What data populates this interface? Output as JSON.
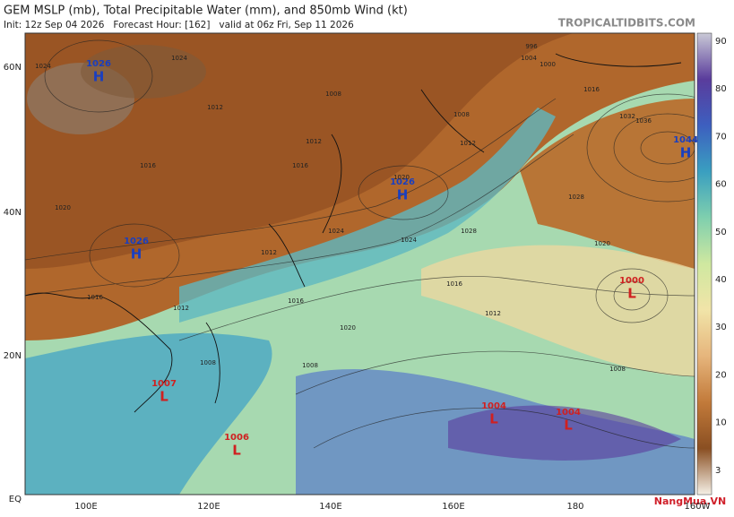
{
  "header": {
    "title": "GEM MSLP (mb), Total Precipitable Water (mm), and 850mb Wind (kt)",
    "subtitle": "Init: 12z Sep 04 2026   Forecast Hour: [162]   valid at 06z Fri, Sep 11 2026",
    "source": "TROPICALTIDBITS.COM"
  },
  "axes": {
    "lat": [
      "60N",
      "40N",
      "20N",
      "EQ"
    ],
    "lon": [
      "100E",
      "120E",
      "140E",
      "160E",
      "180",
      "160W"
    ]
  },
  "colorbar": {
    "ticks": [
      90,
      80,
      70,
      60,
      50,
      40,
      30,
      20,
      10,
      3
    ]
  },
  "centers": [
    {
      "value": "1026",
      "symbol": "H"
    },
    {
      "value": "1026",
      "symbol": "H"
    },
    {
      "value": "1026",
      "symbol": "H"
    },
    {
      "value": "1044",
      "symbol": "H"
    },
    {
      "value": "1007",
      "symbol": "L"
    },
    {
      "value": "1006",
      "symbol": "L"
    },
    {
      "value": "1004",
      "symbol": "L"
    },
    {
      "value": "1004",
      "symbol": "L"
    },
    {
      "value": "1000",
      "symbol": "L"
    }
  ],
  "isobar_labels": [
    "1024",
    "1024",
    "1020",
    "1016",
    "1012",
    "1008",
    "1012",
    "1016",
    "1020",
    "1024",
    "1028",
    "1032",
    "1036",
    "1016",
    "1012",
    "1008",
    "1012",
    "1016",
    "1020",
    "1024",
    "1028",
    "1020",
    "1016",
    "1012",
    "1008",
    "1008",
    "1004",
    "996",
    "1000",
    "1008",
    "1012",
    "1016"
  ],
  "logo": "NangMua.VN"
}
